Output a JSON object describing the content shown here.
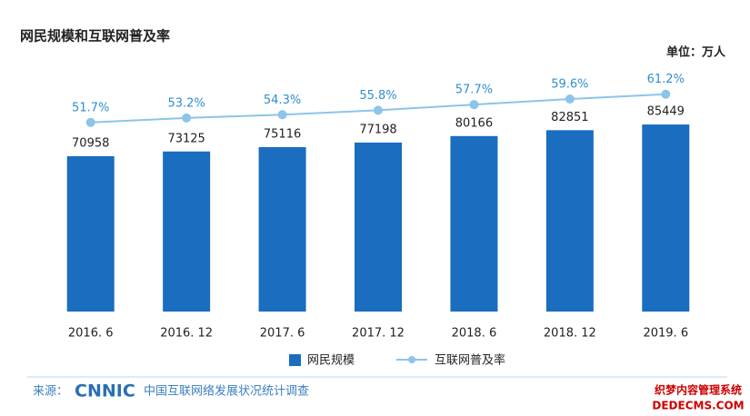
{
  "chart_data": {
    "type": "bar_line",
    "title": "网民规模和互联网普及率",
    "unit": "单位：万人",
    "categories": [
      "2016. 6",
      "2016. 12",
      "2017. 6",
      "2017. 12",
      "2018. 6",
      "2018. 12",
      "2019. 6"
    ],
    "series": [
      {
        "name": "网民规模",
        "color": "#1a6dbf",
        "type": "bar",
        "values": [
          70958,
          73125,
          75116,
          77198,
          80166,
          82851,
          85449
        ]
      },
      {
        "name": "互联网普及率",
        "color": "#8cc4ea",
        "type": "line",
        "axis": "y2",
        "values": [
          51.7,
          53.2,
          54.3,
          55.8,
          57.7,
          59.6,
          61.2
        ],
        "value_labels": [
          "51.7%",
          "53.2%",
          "54.3%",
          "55.8%",
          "57.7%",
          "59.6%",
          "61.2%"
        ]
      }
    ],
    "ylim": [
      0,
      100000
    ],
    "y2lim": [
      40,
      70
    ],
    "source_prefix": "来源：",
    "source_logo": "CNNIC",
    "source": "中国互联网络发展状况统计调查",
    "watermark": [
      "织梦内容管理系统",
      "DEDECMS.COM"
    ]
  }
}
